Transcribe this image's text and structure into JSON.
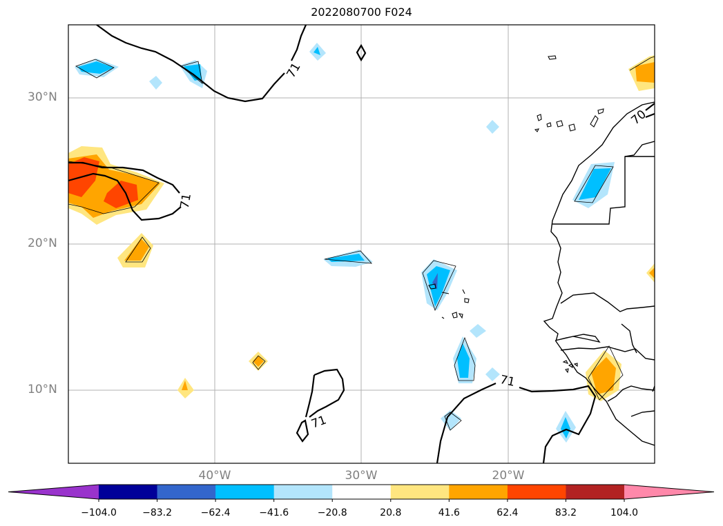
{
  "title": "2022080700 F024",
  "lat_labels": [
    "30°N",
    "20°N",
    "10°N"
  ],
  "lon_labels": [
    "40°W",
    "30°W",
    "20°W"
  ],
  "contour_labels": [
    "71",
    "71",
    "71",
    "71",
    "70"
  ],
  "colorbar": {
    "colors": [
      "#9933cc",
      "#000099",
      "#3366cc",
      "#00bfff",
      "#b3e5fc",
      "#ffffff",
      "#ffe680",
      "#ffa500",
      "#ff4500",
      "#b22222",
      "#ff88aa"
    ],
    "ticks": [
      "−104.0",
      "−83.2",
      "−62.4",
      "−41.6",
      "−20.8",
      "20.8",
      "41.6",
      "62.4",
      "83.2",
      "104.0"
    ]
  },
  "colors": {
    "frame": "#000000",
    "grid": "#b0b0b0",
    "label_gray": "#808080",
    "contour": "#000000"
  }
}
